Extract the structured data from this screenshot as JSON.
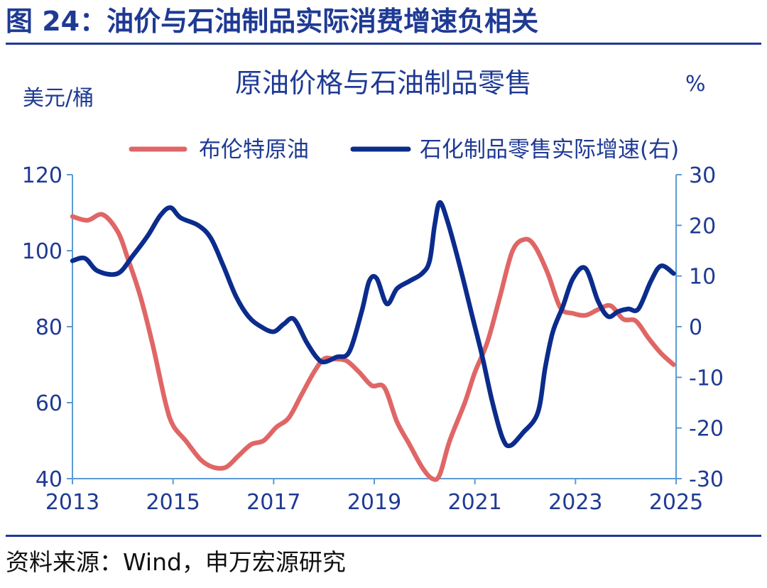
{
  "figure": {
    "title": "图 24：油价与石油制品实际消费增速负相关",
    "source": "资料来源：Wind，申万宏源研究"
  },
  "colors": {
    "accent": "#1f3a93",
    "brent": "#e06666",
    "retail": "#0b2c8c",
    "axis": "#5b9bd5"
  },
  "chart_data": {
    "type": "line",
    "title": "原油价格与石油制品零售",
    "y_left_label": "美元/桶",
    "y_right_label": "%",
    "ylim_left": [
      40,
      120
    ],
    "ylim_right": [
      -30,
      30
    ],
    "xlim": [
      2013,
      2025
    ],
    "x_ticks": [
      "2013",
      "2015",
      "2017",
      "2019",
      "2021",
      "2023",
      "2025"
    ],
    "y_left_ticks": [
      "120",
      "100",
      "80",
      "60",
      "40"
    ],
    "y_right_ticks": [
      "30",
      "20",
      "10",
      "0",
      "-10",
      "-20",
      "-30"
    ],
    "legend_position": "top",
    "series": [
      {
        "name": "布伦特原油",
        "axis": "left",
        "color": "#e06666",
        "points": [
          [
            2013.0,
            109
          ],
          [
            2013.3,
            108
          ],
          [
            2013.6,
            109.5
          ],
          [
            2013.9,
            105
          ],
          [
            2014.1,
            98
          ],
          [
            2014.35,
            88
          ],
          [
            2014.6,
            75
          ],
          [
            2014.85,
            60
          ],
          [
            2015.0,
            54
          ],
          [
            2015.25,
            50
          ],
          [
            2015.55,
            45
          ],
          [
            2015.8,
            43
          ],
          [
            2016.05,
            43
          ],
          [
            2016.3,
            46
          ],
          [
            2016.55,
            49
          ],
          [
            2016.8,
            50
          ],
          [
            2017.05,
            53.5
          ],
          [
            2017.3,
            56
          ],
          [
            2017.55,
            62
          ],
          [
            2017.8,
            68
          ],
          [
            2018.0,
            71.5
          ],
          [
            2018.2,
            71.5
          ],
          [
            2018.45,
            71
          ],
          [
            2018.7,
            68
          ],
          [
            2018.95,
            64.5
          ],
          [
            2019.2,
            64
          ],
          [
            2019.45,
            55
          ],
          [
            2019.7,
            49
          ],
          [
            2019.95,
            43
          ],
          [
            2020.15,
            40
          ],
          [
            2020.3,
            41
          ],
          [
            2020.5,
            50
          ],
          [
            2020.8,
            60
          ],
          [
            2021.0,
            68
          ],
          [
            2021.25,
            76
          ],
          [
            2021.5,
            88
          ],
          [
            2021.75,
            100
          ],
          [
            2022.0,
            103
          ],
          [
            2022.2,
            101
          ],
          [
            2022.45,
            94
          ],
          [
            2022.7,
            85
          ],
          [
            2022.95,
            83.5
          ],
          [
            2023.2,
            83
          ],
          [
            2023.45,
            84.5
          ],
          [
            2023.7,
            85.5
          ],
          [
            2023.95,
            82
          ],
          [
            2024.2,
            81.5
          ],
          [
            2024.45,
            77
          ],
          [
            2024.7,
            73
          ],
          [
            2024.95,
            70
          ]
        ]
      },
      {
        "name": "石化制品零售实际增速(右)",
        "axis": "right",
        "color": "#0b2c8c",
        "points": [
          [
            2013.0,
            13
          ],
          [
            2013.25,
            13.5
          ],
          [
            2013.5,
            11
          ],
          [
            2013.9,
            10.5
          ],
          [
            2014.2,
            14
          ],
          [
            2014.5,
            18
          ],
          [
            2014.75,
            22
          ],
          [
            2014.95,
            23.5
          ],
          [
            2015.15,
            21.5
          ],
          [
            2015.5,
            20
          ],
          [
            2015.75,
            17.5
          ],
          [
            2016.0,
            12
          ],
          [
            2016.25,
            6
          ],
          [
            2016.5,
            2
          ],
          [
            2016.75,
            0
          ],
          [
            2017.0,
            -1
          ],
          [
            2017.2,
            0.5
          ],
          [
            2017.4,
            1.5
          ],
          [
            2017.65,
            -3
          ],
          [
            2017.85,
            -6
          ],
          [
            2018.0,
            -7
          ],
          [
            2018.25,
            -6
          ],
          [
            2018.5,
            -5
          ],
          [
            2018.75,
            3
          ],
          [
            2018.9,
            9
          ],
          [
            2019.05,
            9.5
          ],
          [
            2019.25,
            4.5
          ],
          [
            2019.45,
            7.5
          ],
          [
            2019.7,
            9
          ],
          [
            2019.95,
            10.5
          ],
          [
            2020.1,
            13
          ],
          [
            2020.2,
            20
          ],
          [
            2020.3,
            24.5
          ],
          [
            2020.45,
            21
          ],
          [
            2020.7,
            12
          ],
          [
            2020.95,
            2
          ],
          [
            2021.15,
            -6
          ],
          [
            2021.35,
            -15
          ],
          [
            2021.55,
            -22
          ],
          [
            2021.7,
            -23.5
          ],
          [
            2021.95,
            -21
          ],
          [
            2022.25,
            -17
          ],
          [
            2022.4,
            -8
          ],
          [
            2022.55,
            -1
          ],
          [
            2022.75,
            4
          ],
          [
            2022.95,
            9.5
          ],
          [
            2023.2,
            11.5
          ],
          [
            2023.45,
            5
          ],
          [
            2023.65,
            2
          ],
          [
            2023.85,
            3
          ],
          [
            2024.05,
            3.5
          ],
          [
            2024.25,
            3.5
          ],
          [
            2024.5,
            9
          ],
          [
            2024.7,
            12
          ],
          [
            2024.95,
            10.5
          ]
        ]
      }
    ]
  }
}
